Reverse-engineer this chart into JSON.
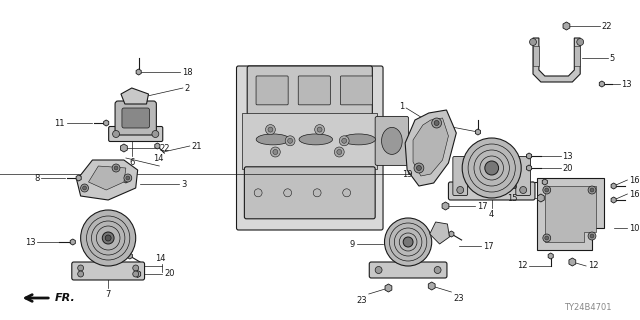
{
  "diagram_id": "TY24B4701",
  "background_color": "#ffffff",
  "line_color": "#1a1a1a",
  "text_color": "#1a1a1a",
  "figsize": [
    6.4,
    3.2
  ],
  "dpi": 100,
  "lw_part": 0.8,
  "lw_detail": 0.5,
  "lw_leader": 0.5,
  "fs_label": 6.0,
  "gray_fill": "#c8c8c8",
  "dark_fill": "#555555",
  "mid_fill": "#888888",
  "light_fill": "#e0e0e0"
}
